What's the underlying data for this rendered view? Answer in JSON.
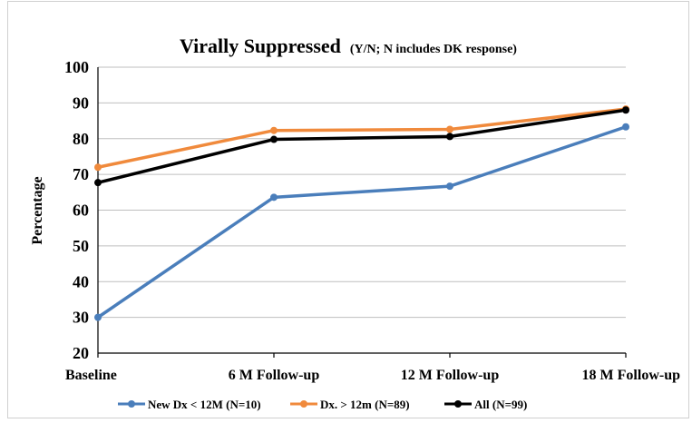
{
  "chart_data": {
    "type": "line",
    "title": "Virally Suppressed",
    "subtitle": "(Y/N; N includes DK response)",
    "xlabel": "",
    "ylabel": "Percentage",
    "ylim": [
      20,
      100
    ],
    "yticks": [
      20,
      30,
      40,
      50,
      60,
      70,
      80,
      90,
      100
    ],
    "categories": [
      "Baseline",
      "6 M Follow-up",
      "12 M Follow-up",
      "18 M Follow-up"
    ],
    "grid": true,
    "legend_position": "bottom",
    "series": [
      {
        "name": "New Dx < 12M (N=10)",
        "color": "#4a7ebb",
        "values": [
          30,
          63.6,
          66.7,
          83.3
        ]
      },
      {
        "name": "Dx. > 12m (N=89)",
        "color": "#f08a3c",
        "values": [
          72,
          82.3,
          82.6,
          88.3
        ]
      },
      {
        "name": "All (N=99)",
        "color": "#000000",
        "values": [
          67.7,
          79.8,
          80.6,
          88
        ]
      }
    ]
  }
}
